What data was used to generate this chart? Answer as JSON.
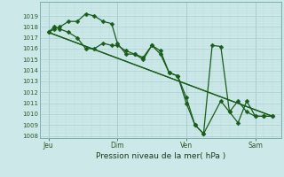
{
  "xlabel": "Pression niveau de la mer( hPa )",
  "background_color": "#cce8e8",
  "grid_major_color": "#aacece",
  "grid_minor_color": "#bcdcdc",
  "line_color": "#1a5c1a",
  "ylim": [
    1008,
    1020
  ],
  "yticks": [
    1008,
    1009,
    1010,
    1011,
    1012,
    1013,
    1014,
    1015,
    1016,
    1017,
    1018,
    1019
  ],
  "xtick_labels": [
    "Jeu",
    "Dim",
    "Ven",
    "Sam"
  ],
  "xtick_positions": [
    0,
    48,
    96,
    144
  ],
  "xlim": [
    -6,
    162
  ],
  "series_zigzag1": {
    "x": [
      0,
      4,
      8,
      14,
      20,
      26,
      32,
      38,
      44,
      48,
      54,
      60,
      66,
      72,
      78,
      84,
      90,
      96,
      102,
      108,
      114,
      120,
      126,
      132,
      138,
      144,
      150,
      156
    ],
    "y": [
      1017.5,
      1018.0,
      1017.8,
      1017.5,
      1017.0,
      1016.0,
      1016.0,
      1016.5,
      1016.3,
      1016.3,
      1015.8,
      1015.5,
      1015.2,
      1016.3,
      1015.8,
      1013.8,
      1013.5,
      1011.0,
      1009.0,
      1008.2,
      1016.3,
      1016.2,
      1010.2,
      1011.2,
      1010.2,
      1009.8,
      1009.8,
      1009.8
    ]
  },
  "series_zigzag2": {
    "x": [
      0,
      4,
      8,
      14,
      20,
      26,
      32,
      38,
      44,
      48,
      54,
      60,
      66,
      72,
      78,
      84,
      90,
      96,
      102,
      108,
      120,
      126,
      132,
      138,
      144,
      150,
      156
    ],
    "y": [
      1017.5,
      1017.8,
      1018.0,
      1018.5,
      1018.5,
      1019.2,
      1019.0,
      1018.5,
      1018.3,
      1016.5,
      1015.5,
      1015.5,
      1015.0,
      1016.3,
      1015.5,
      1013.8,
      1013.5,
      1011.5,
      1009.0,
      1008.2,
      1011.2,
      1010.2,
      1009.2,
      1011.2,
      1009.8,
      1009.8,
      1009.8
    ]
  },
  "series_trend1": {
    "x": [
      0,
      156
    ],
    "y": [
      1017.5,
      1009.8
    ]
  },
  "series_trend2": {
    "x": [
      0,
      156
    ],
    "y": [
      1017.5,
      1009.8
    ]
  },
  "vline_positions": [
    0,
    48,
    96,
    144
  ],
  "markersize": 2.5,
  "linewidth": 0.9
}
